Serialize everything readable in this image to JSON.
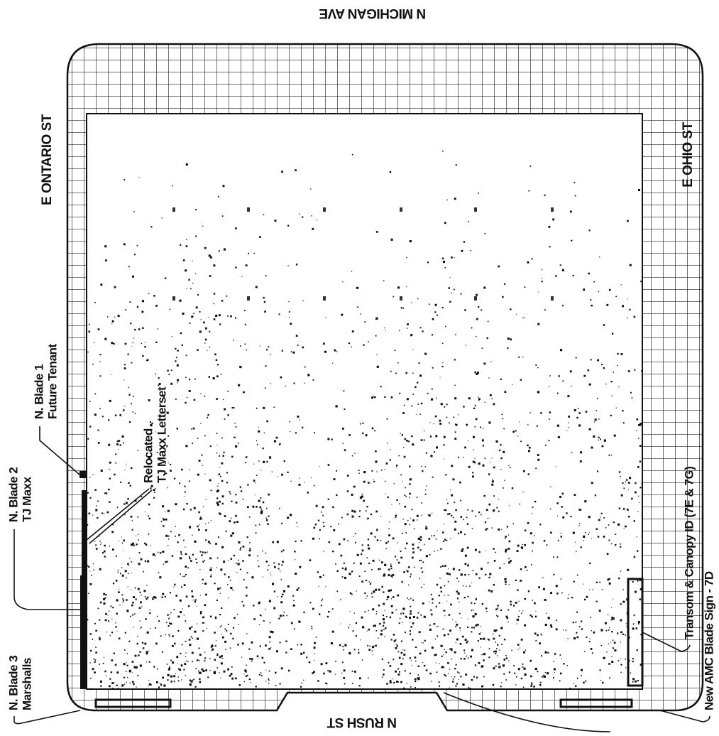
{
  "streets": {
    "north": "N MICHIGAN AVE",
    "south": "N RUSH ST",
    "west": "E ONTARIO ST",
    "east": "E OHIO ST"
  },
  "labels": [
    {
      "title": "N. Blade 1",
      "subtitle": "Future Tenant"
    },
    {
      "title": "N. Blade 2",
      "subtitle": "TJ Maxx"
    },
    {
      "title": "N. Blade 3",
      "subtitle": "Marshalls"
    },
    {
      "title": "Relocated",
      "subtitle": "TJ Maxx Letterset"
    },
    {
      "title": "Transom & Canopy ID (7E & 7G)"
    },
    {
      "title": "New AMC Blade Sign - 7D"
    }
  ]
}
